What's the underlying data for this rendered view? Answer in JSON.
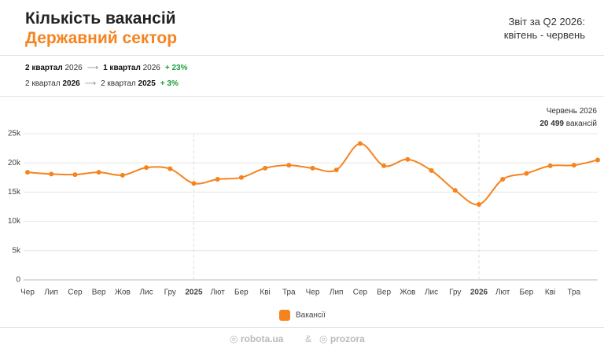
{
  "header": {
    "title": "Кількість вакансій",
    "subtitle": "Державний сектор",
    "report_line1": "Звіт за Q2 2026:",
    "report_line2": "квітень - червень"
  },
  "comparisons": [
    {
      "from_quarter": "2 квартал",
      "from_year": "2026",
      "to_quarter": "1 квартал",
      "to_year": "2026",
      "change": "+ 23%"
    },
    {
      "from_quarter": "2 квартал",
      "from_year": "2026",
      "to_quarter": "2 квартал",
      "to_year": "2025",
      "change": "+ 3%"
    }
  ],
  "chart_data": {
    "type": "line",
    "categories": [
      "Чер",
      "Лип",
      "Сер",
      "Вер",
      "Жов",
      "Лис",
      "Гру",
      "2025",
      "Лют",
      "Бер",
      "Кві",
      "Тра",
      "Чер",
      "Лип",
      "Сер",
      "Вер",
      "Жов",
      "Лис",
      "Гру",
      "2026",
      "Лют",
      "Бер",
      "Кві",
      "Тра",
      null
    ],
    "series": [
      {
        "name": "Вакансії",
        "color": "#f5841f",
        "values": [
          18400,
          18100,
          18000,
          18400,
          17900,
          19200,
          19000,
          16500,
          17200,
          17500,
          19100,
          19600,
          19100,
          18800,
          23300,
          19500,
          20600,
          18700,
          15300,
          12900,
          17200,
          18200,
          19500,
          19600,
          20499
        ]
      }
    ],
    "ylim": [
      0,
      25000
    ],
    "yticks": [
      0,
      {
        "value": 5000,
        "label": "5k"
      },
      {
        "value": 10000,
        "label": "10k"
      },
      {
        "value": 15000,
        "label": "15k"
      },
      {
        "value": 20000,
        "label": "20k"
      },
      {
        "value": 25000,
        "label": "25k"
      }
    ],
    "grid": true,
    "annotation": {
      "title": "Червень 2026",
      "value_label": "20 499",
      "unit": "вакансій"
    }
  },
  "footer": {
    "brand1": "robota.ua",
    "amp": "&",
    "brand2": "prozora"
  }
}
